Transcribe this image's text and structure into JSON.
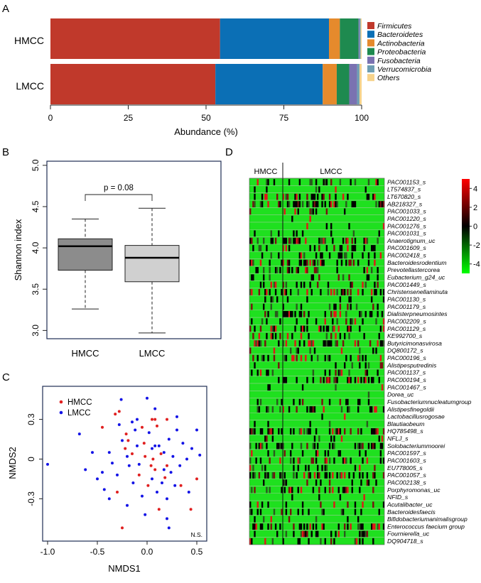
{
  "panels": {
    "a": "A",
    "b": "B",
    "c": "C",
    "d": "D"
  },
  "colors": {
    "firmicutes": "#C0392B",
    "bacteroidetes": "#0B6FB5",
    "actinobacteria": "#E58A2C",
    "proteobacteria": "#1E8A4F",
    "fusobacteria": "#7A72B1",
    "verrucomicrobia": "#6E9EB4",
    "others": "#F6D38B",
    "frame": "#1F2D54",
    "hm_point": "#E02020",
    "lm_point": "#1414E6",
    "box_hmcc": "#8C8C8C",
    "box_lmcc": "#D0D0D0"
  },
  "chart_data": [
    {
      "id": "A",
      "type": "bar",
      "orientation": "horizontal",
      "stacked": true,
      "categories": [
        "HMCC",
        "LMCC"
      ],
      "series": [
        {
          "name": "Firmicutes",
          "values": [
            54.5,
            53.0
          ]
        },
        {
          "name": "Bacteroidetes",
          "values": [
            35.0,
            34.5
          ]
        },
        {
          "name": "Actinobacteria",
          "values": [
            3.5,
            4.5
          ]
        },
        {
          "name": "Proteobacteria",
          "values": [
            6.0,
            4.0
          ]
        },
        {
          "name": "Fusobacteria",
          "values": [
            0.3,
            2.5
          ]
        },
        {
          "name": "Verrucomicrobia",
          "values": [
            0.4,
            0.8
          ]
        },
        {
          "name": "Others",
          "values": [
            0.3,
            0.7
          ]
        }
      ],
      "xlabel": "Abundance (%)",
      "xlim": [
        0,
        100
      ],
      "xticks": [
        "0",
        "25",
        "50",
        "75",
        "100"
      ],
      "legend": "right"
    },
    {
      "id": "B",
      "type": "boxplot",
      "categories": [
        "HMCC",
        "LMCC"
      ],
      "boxes": [
        {
          "name": "HMCC",
          "min": 3.26,
          "q1": 3.73,
          "median": 4.02,
          "q3": 4.11,
          "max": 4.35
        },
        {
          "name": "LMCC",
          "min": 2.97,
          "q1": 3.59,
          "median": 3.88,
          "q3": 4.03,
          "max": 4.48
        }
      ],
      "ylabel": "Shannon index",
      "ylim": [
        2.9,
        5.05
      ],
      "yticks": [
        "3.0",
        "3.5",
        "4.0",
        "4.5",
        "5.0"
      ],
      "annotation": "p = 0.08"
    },
    {
      "id": "C",
      "type": "scatter",
      "xlabel": "NMDS1",
      "ylabel": "NMDS2",
      "xlim": [
        -1.05,
        0.6
      ],
      "ylim": [
        -0.62,
        0.55
      ],
      "xticks": [
        "-1.0",
        "-0.5",
        "0.0",
        "0.5"
      ],
      "yticks": [
        "-0.3",
        "0",
        "0.3"
      ],
      "annotation": "N.S.",
      "series": [
        {
          "name": "HMCC",
          "points": [
            [
              -0.28,
              0.36
            ],
            [
              -0.32,
              0.34
            ],
            [
              -0.45,
              0.24
            ],
            [
              -0.21,
              0.19
            ],
            [
              -0.19,
              0.14
            ],
            [
              -0.05,
              0.24
            ],
            [
              0.05,
              0.3
            ],
            [
              0.08,
              0.3
            ],
            [
              0.2,
              0.3
            ],
            [
              0.1,
              0.25
            ],
            [
              -0.22,
              0.08
            ],
            [
              -0.15,
              0.04
            ],
            [
              -0.02,
              0.02
            ],
            [
              0.06,
              0.0
            ],
            [
              0.14,
              0.04
            ],
            [
              0.04,
              -0.05
            ],
            [
              0.08,
              -0.08
            ],
            [
              -0.08,
              -0.12
            ],
            [
              0.18,
              -0.14
            ],
            [
              0.01,
              -0.2
            ],
            [
              0.5,
              -0.15
            ],
            [
              0.34,
              -0.2
            ],
            [
              -0.3,
              -0.25
            ],
            [
              0.12,
              -0.38
            ],
            [
              -0.25,
              -0.52
            ],
            [
              0.44,
              -0.38
            ],
            [
              -0.03,
              0.12
            ],
            [
              0.2,
              -0.05
            ]
          ]
        },
        {
          "name": "LMCC",
          "points": [
            [
              -1.0,
              -0.04
            ],
            [
              -0.68,
              0.19
            ],
            [
              -0.55,
              0.05
            ],
            [
              -0.62,
              -0.08
            ],
            [
              -0.5,
              -0.15
            ],
            [
              -0.43,
              -0.23
            ],
            [
              -0.38,
              0.05
            ],
            [
              -0.35,
              -0.03
            ],
            [
              -0.3,
              -0.12
            ],
            [
              -0.28,
              0.26
            ],
            [
              -0.26,
              0.45
            ],
            [
              -0.25,
              0.14
            ],
            [
              -0.2,
              0.02
            ],
            [
              -0.18,
              -0.05
            ],
            [
              -0.15,
              0.28
            ],
            [
              -0.14,
              -0.18
            ],
            [
              -0.1,
              0.1
            ],
            [
              -0.1,
              0.3
            ],
            [
              -0.08,
              -0.04
            ],
            [
              -0.05,
              -0.28
            ],
            [
              0.0,
              0.46
            ],
            [
              0.02,
              0.2
            ],
            [
              0.05,
              0.08
            ],
            [
              0.08,
              0.1
            ],
            [
              0.1,
              -0.25
            ],
            [
              0.12,
              0.1
            ],
            [
              0.15,
              -0.18
            ],
            [
              0.17,
              0.05
            ],
            [
              0.2,
              -0.3
            ],
            [
              0.22,
              0.15
            ],
            [
              0.24,
              -0.1
            ],
            [
              0.26,
              0.02
            ],
            [
              0.28,
              -0.2
            ],
            [
              0.3,
              0.22
            ],
            [
              0.33,
              -0.05
            ],
            [
              0.36,
              0.12
            ],
            [
              0.4,
              0.0
            ],
            [
              0.42,
              -0.25
            ],
            [
              0.45,
              0.08
            ],
            [
              0.5,
              0.22
            ],
            [
              0.53,
              0.03
            ],
            [
              -0.38,
              -0.3
            ],
            [
              -0.2,
              -0.35
            ],
            [
              -0.02,
              -0.42
            ],
            [
              0.2,
              -0.45
            ],
            [
              0.22,
              -0.52
            ],
            [
              0.08,
              0.38
            ],
            [
              -0.45,
              -0.1
            ],
            [
              0.3,
              0.32
            ],
            [
              0.17,
              -0.08
            ],
            [
              -0.12,
              0.22
            ],
            [
              0.05,
              -0.15
            ]
          ]
        }
      ]
    },
    {
      "id": "D",
      "type": "heatmap",
      "groups": [
        {
          "name": "HMCC",
          "n": 10
        },
        {
          "name": "LMCC",
          "n": 80
        }
      ],
      "rows": [
        "PAC001153_s",
        "LT574837_s",
        "LT670820_s",
        "AB218327_s",
        "PAC001033_s",
        "PAC001220_s",
        "PAC001276_s",
        "PAC001031_s",
        "Anaerotignum_uc",
        "PAC001609_s",
        "PAC002418_s",
        "Bacteroidesrodentium",
        "Prevotellastercorea",
        "Eubacterium_g24_uc",
        "PAC001449_s",
        "Christensenellaminuta",
        "PAC001130_s",
        "PAC001179_s",
        "Dialisterpneumosintes",
        "PAC002209_s",
        "PAC001129_s",
        "KE992700_s",
        "Butyricimonasvirosa",
        "DQ800172_s",
        "PAC000196_s",
        "Alistipesputredinis",
        "PAC001137_s",
        "PAC000194_s",
        "PAC001467_s",
        "Dorea_uc",
        "Fusobacteriumnucleatumgroup",
        "Alistipesfinegoldii",
        "Lactobacillusrogosae",
        "Blautiaobeum",
        "HQ785498_s",
        "NFLJ_s",
        "Solobacteriummoorei",
        "PAC001597_s",
        "PAC001603_s",
        "EU778005_s",
        "PAC001057_s",
        "PAC002138_s",
        "Porphyromonas_uc",
        "NFID_s",
        "Acutalibacter_uc",
        "Bacteroidesfaecis",
        "Bifidobacteriumanimalisgroup",
        "Enterococcus faecium group",
        "Fournierella_uc",
        "DQ904718_s"
      ],
      "colorbar": {
        "min": -5,
        "max": 5,
        "ticks": [
          "4",
          "2",
          "0",
          "-2",
          "-4"
        ]
      }
    }
  ]
}
